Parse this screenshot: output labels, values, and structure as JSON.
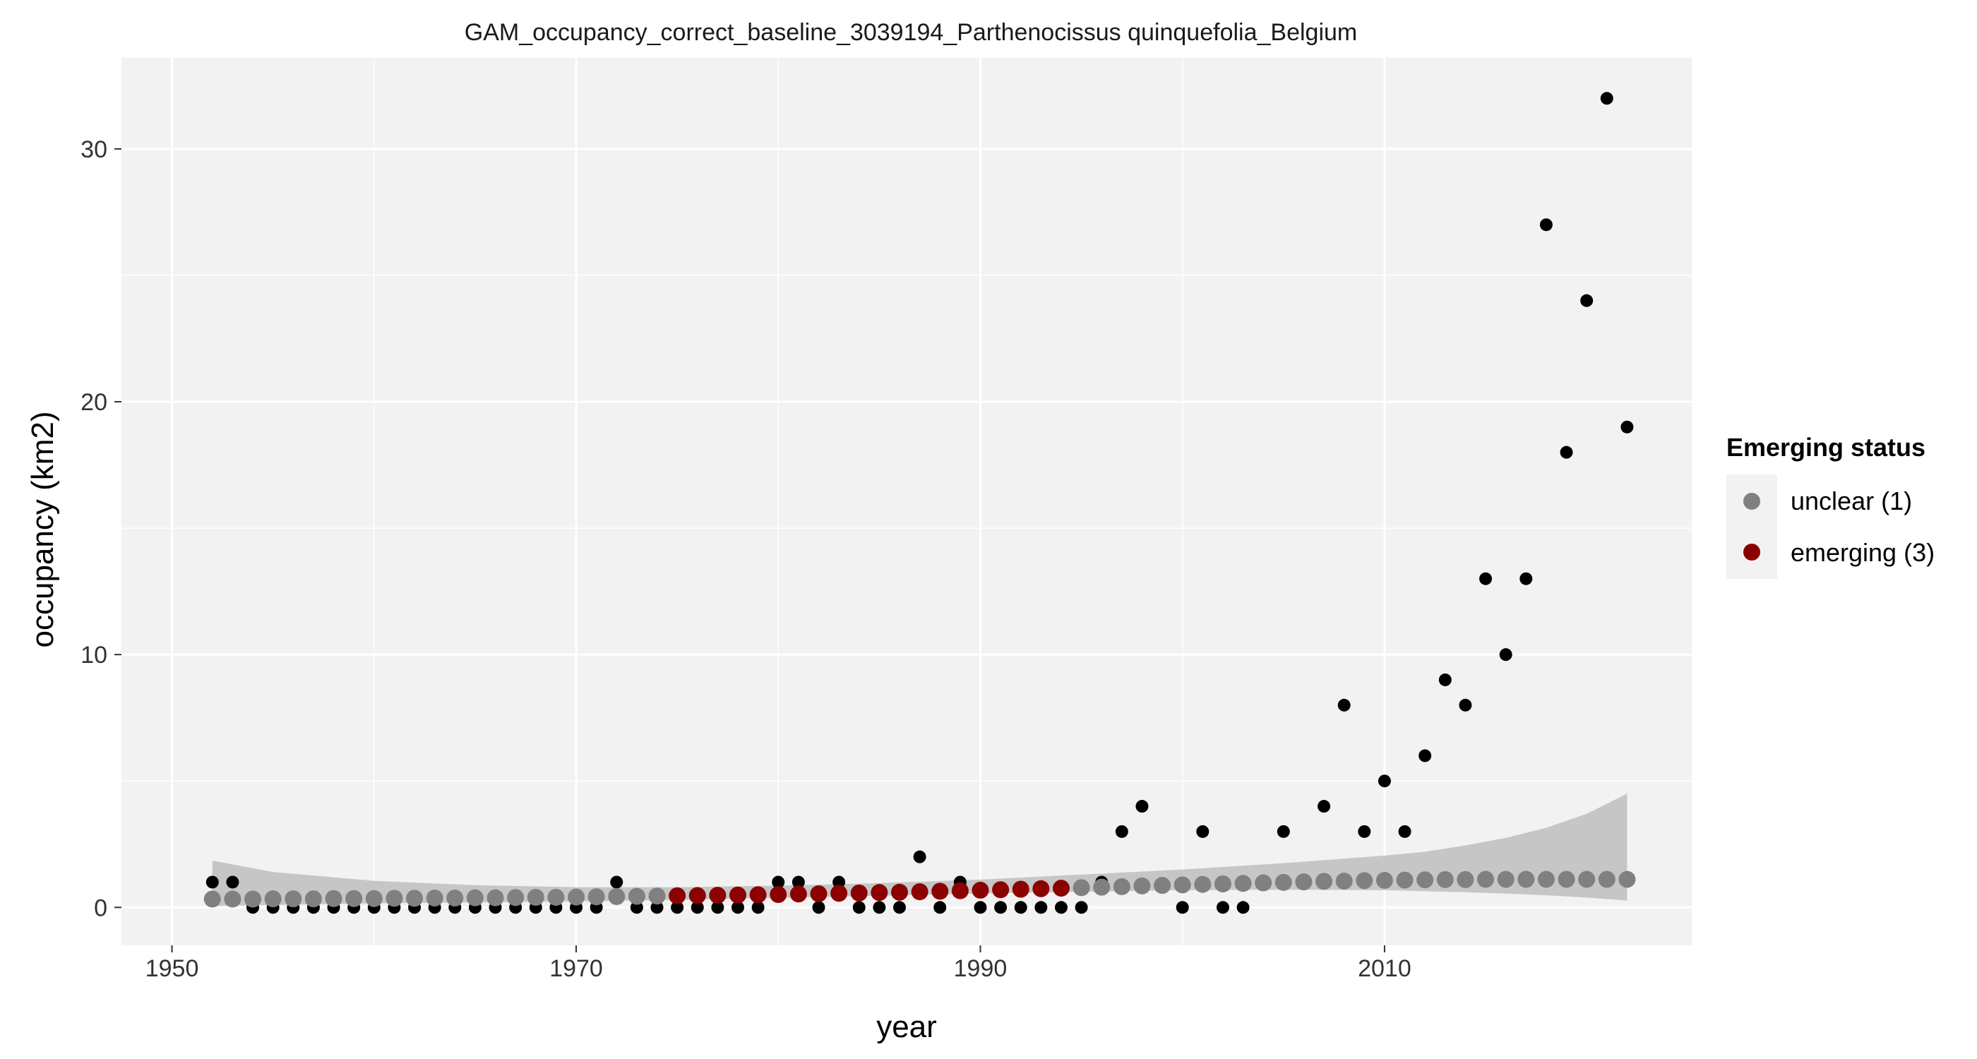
{
  "chart_data": {
    "type": "scatter",
    "title": "GAM_occupancy_correct_baseline_3039194_Parthenocissus quinquefolia_Belgium",
    "xlabel": "year",
    "ylabel": "occupancy (km2)",
    "xlim": [
      1947.5,
      2025.2
    ],
    "ylim": [
      -1.5,
      33.6
    ],
    "x_ticks": [
      1950,
      1970,
      1990,
      2010
    ],
    "y_ticks": [
      0,
      10,
      20,
      30
    ],
    "x_tick_labels": [
      "1950",
      "1970",
      "1990",
      "2010"
    ],
    "y_tick_labels": [
      "0",
      "10",
      "20",
      "30"
    ],
    "grid": true,
    "legend": {
      "title": "Emerging status",
      "position": "right",
      "entries": [
        {
          "label": "unclear (1)",
          "color": "#808080"
        },
        {
          "label": "emerging (3)",
          "color": "#8B0000"
        }
      ]
    },
    "colors": {
      "panel": "#F2F2F2",
      "grid": "#FFFFFF",
      "observed": "#000000",
      "ribbon": "#BEBEBE",
      "unclear": "#808080",
      "emerging": "#8B0000"
    },
    "observed": {
      "x": [
        1952,
        1953,
        1954,
        1955,
        1956,
        1957,
        1958,
        1959,
        1960,
        1961,
        1962,
        1963,
        1964,
        1965,
        1966,
        1967,
        1968,
        1969,
        1970,
        1971,
        1972,
        1973,
        1974,
        1975,
        1976,
        1977,
        1978,
        1979,
        1980,
        1981,
        1982,
        1983,
        1984,
        1985,
        1986,
        1987,
        1988,
        1989,
        1990,
        1991,
        1992,
        1993,
        1994,
        1995,
        1996,
        1997,
        1998,
        2000,
        2001,
        2002,
        2003,
        2005,
        2007,
        2008,
        2009,
        2010,
        2011,
        2012,
        2013,
        2014,
        2015,
        2016,
        2017,
        2018,
        2019,
        2020,
        2021,
        2022
      ],
      "y": [
        1,
        1,
        0,
        0,
        0,
        0,
        0,
        0,
        0,
        0,
        0,
        0,
        0,
        0,
        0,
        0,
        0,
        0,
        0,
        0,
        1,
        0,
        0,
        0,
        0,
        0,
        0,
        0,
        1,
        1,
        0,
        1,
        0,
        0,
        0,
        2,
        0,
        1,
        0,
        0,
        0,
        0,
        0,
        0,
        1,
        3,
        4,
        0,
        3,
        0,
        0,
        3,
        4,
        8,
        3,
        5,
        3,
        6,
        9,
        8,
        13,
        10,
        13,
        27,
        18,
        24,
        32,
        19
      ]
    },
    "fitted": {
      "x": [
        1952,
        1953,
        1954,
        1955,
        1956,
        1957,
        1958,
        1959,
        1960,
        1961,
        1962,
        1963,
        1964,
        1965,
        1966,
        1967,
        1968,
        1969,
        1970,
        1971,
        1972,
        1973,
        1974,
        1975,
        1976,
        1977,
        1978,
        1979,
        1980,
        1981,
        1982,
        1983,
        1984,
        1985,
        1986,
        1987,
        1988,
        1989,
        1990,
        1991,
        1992,
        1993,
        1994,
        1995,
        1996,
        1997,
        1998,
        1999,
        2000,
        2001,
        2002,
        2003,
        2004,
        2005,
        2006,
        2007,
        2008,
        2009,
        2010,
        2011,
        2012,
        2013,
        2014,
        2015,
        2016,
        2017,
        2018,
        2019,
        2020,
        2021,
        2022
      ],
      "y": [
        0.33,
        0.33,
        0.33,
        0.34,
        0.34,
        0.34,
        0.35,
        0.35,
        0.35,
        0.36,
        0.36,
        0.37,
        0.37,
        0.38,
        0.38,
        0.39,
        0.4,
        0.4,
        0.41,
        0.42,
        0.43,
        0.44,
        0.45,
        0.46,
        0.47,
        0.48,
        0.49,
        0.5,
        0.51,
        0.53,
        0.54,
        0.56,
        0.57,
        0.59,
        0.6,
        0.62,
        0.64,
        0.66,
        0.68,
        0.7,
        0.72,
        0.74,
        0.76,
        0.78,
        0.8,
        0.82,
        0.85,
        0.87,
        0.89,
        0.91,
        0.93,
        0.95,
        0.97,
        0.99,
        1.01,
        1.03,
        1.04,
        1.06,
        1.07,
        1.08,
        1.09,
        1.1,
        1.1,
        1.11,
        1.11,
        1.11,
        1.11,
        1.11,
        1.11,
        1.11,
        1.11
      ],
      "status": [
        "unclear",
        "unclear",
        "unclear",
        "unclear",
        "unclear",
        "unclear",
        "unclear",
        "unclear",
        "unclear",
        "unclear",
        "unclear",
        "unclear",
        "unclear",
        "unclear",
        "unclear",
        "unclear",
        "unclear",
        "unclear",
        "unclear",
        "unclear",
        "unclear",
        "unclear",
        "unclear",
        "emerging",
        "emerging",
        "emerging",
        "emerging",
        "emerging",
        "emerging",
        "emerging",
        "emerging",
        "emerging",
        "emerging",
        "emerging",
        "emerging",
        "emerging",
        "emerging",
        "emerging",
        "emerging",
        "emerging",
        "emerging",
        "emerging",
        "emerging",
        "unclear",
        "unclear",
        "unclear",
        "unclear",
        "unclear",
        "unclear",
        "unclear",
        "unclear",
        "unclear",
        "unclear",
        "unclear",
        "unclear",
        "unclear",
        "unclear",
        "unclear",
        "unclear",
        "unclear",
        "unclear",
        "unclear",
        "unclear",
        "unclear",
        "unclear",
        "unclear",
        "unclear",
        "unclear",
        "unclear",
        "unclear",
        "unclear"
      ]
    },
    "ribbon": {
      "x": [
        1952,
        1955,
        1960,
        1965,
        1970,
        1975,
        1980,
        1985,
        1990,
        1995,
        2000,
        2005,
        2010,
        2012,
        2014,
        2016,
        2018,
        2020,
        2022
      ],
      "lower": [
        0.05,
        0.1,
        0.16,
        0.2,
        0.24,
        0.3,
        0.38,
        0.46,
        0.55,
        0.62,
        0.68,
        0.7,
        0.68,
        0.64,
        0.6,
        0.55,
        0.48,
        0.39,
        0.27
      ],
      "upper": [
        1.85,
        1.4,
        1.05,
        0.88,
        0.8,
        0.8,
        0.86,
        0.96,
        1.1,
        1.3,
        1.5,
        1.75,
        2.05,
        2.2,
        2.45,
        2.75,
        3.15,
        3.7,
        4.5
      ]
    }
  }
}
